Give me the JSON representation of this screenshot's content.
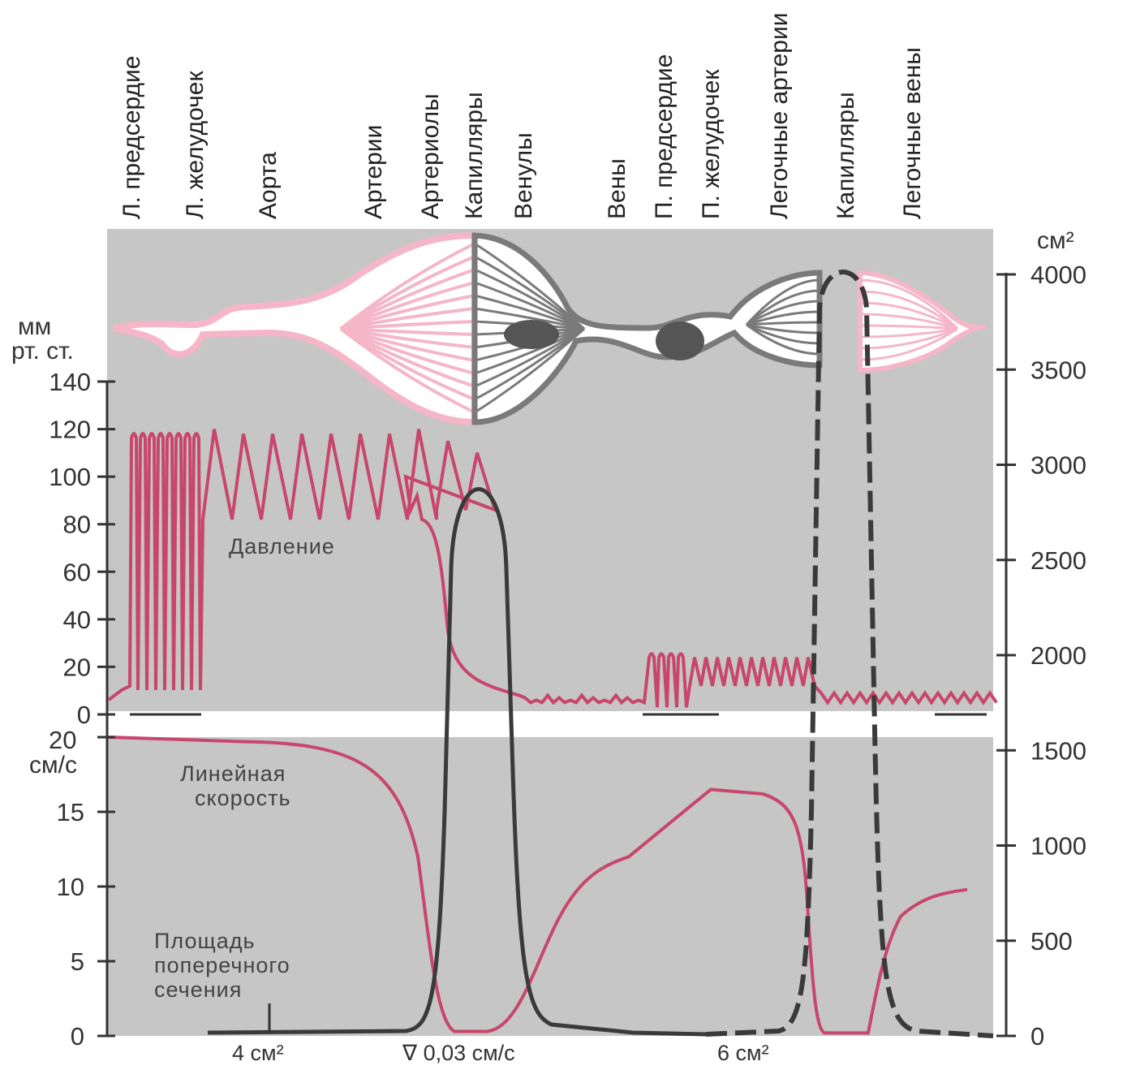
{
  "header_labels": [
    {
      "id": "l-atrium",
      "text": "Л. предсердие"
    },
    {
      "id": "l-ventricle",
      "text": "Л. желудочек"
    },
    {
      "id": "aorta",
      "text": "Аорта"
    },
    {
      "id": "arteries",
      "text": "Артерии"
    },
    {
      "id": "arterioles",
      "text": "Артериолы"
    },
    {
      "id": "capillaries",
      "text": "Капилляры"
    },
    {
      "id": "venules",
      "text": "Венулы"
    },
    {
      "id": "veins",
      "text": "Вены"
    },
    {
      "id": "r-atrium",
      "text": "П. предсердие"
    },
    {
      "id": "r-ventricle",
      "text": "П. желудочек"
    },
    {
      "id": "pulm-arteries",
      "text": "Легочные артерии"
    },
    {
      "id": "pulm-capillaries",
      "text": "Капилляры"
    },
    {
      "id": "pulm-veins",
      "text": "Легочные вены"
    }
  ],
  "axes": {
    "pressure": {
      "unit_line1": "мм",
      "unit_line2": "рт. ст.",
      "ticks": [
        "140",
        "120",
        "100",
        "80",
        "60",
        "40",
        "20",
        "0"
      ]
    },
    "velocity": {
      "unit_value": "20",
      "unit": "см/с",
      "ticks": [
        "15",
        "10",
        "5",
        "0"
      ]
    },
    "area": {
      "unit": "см²",
      "ticks": [
        "4000",
        "3500",
        "3000",
        "2500",
        "2000",
        "1500",
        "1000",
        "500",
        "0"
      ]
    }
  },
  "curve_labels": {
    "pressure": "Давление",
    "velocity_line1": "Линейная",
    "velocity_line2": "скорость",
    "area_line1": "Площадь",
    "area_line2": "поперечного",
    "area_line3": "сечения"
  },
  "footnotes": {
    "aorta_area": "4 см²",
    "capillary_velocity": "∇ 0,03 см/с",
    "pulm_area": "6 см²"
  },
  "colors": {
    "background_panel": "#c6c6c6",
    "pressure_curve": "#c8466e",
    "velocity_curve": "#c8466e",
    "area_curve": "#3a3a3a",
    "arterial_vessels": "#f4b6c8",
    "venous_vessels": "#7a7a7a"
  },
  "chart_data": {
    "type": "line",
    "series": [
      {
        "name": "Давление",
        "x": [
          0,
          1,
          2,
          2.6,
          3.0,
          3.3,
          4,
          5,
          6,
          7,
          8,
          9,
          10
        ],
        "y_min": [
          10,
          10,
          82,
          85,
          30,
          12,
          6,
          5,
          5,
          12,
          10,
          5,
          5
        ],
        "y_max": [
          118,
          118,
          118,
          120,
          80,
          15,
          10,
          8,
          25,
          25,
          10,
          8,
          8
        ]
      },
      {
        "name": "Линейная скорость",
        "x": [
          0,
          1,
          2,
          2.6,
          3.0,
          3.3,
          3.6,
          4,
          5,
          6,
          7,
          7.5,
          8,
          9,
          10
        ],
        "y": [
          20,
          20,
          19.5,
          18,
          10,
          0.5,
          0,
          3,
          11.5,
          16.5,
          15.5,
          0.5,
          0,
          5,
          10
        ]
      },
      {
        "name": "Площадь поперечного сечения",
        "x": [
          0,
          1,
          2,
          2.6,
          2.9,
          3.3,
          3.6,
          4,
          5,
          6,
          7,
          7.4,
          7.6,
          8.0,
          8.3,
          9,
          10
        ],
        "y": [
          4,
          4,
          4,
          100,
          3000,
          3000,
          100,
          40,
          10,
          6,
          20,
          4000,
          4000,
          4000,
          100,
          30,
          10
        ]
      }
    ],
    "axis_ranges": {
      "pressure": [
        0,
        140
      ],
      "velocity": [
        0,
        20
      ],
      "area": [
        0,
        4000
      ]
    }
  }
}
